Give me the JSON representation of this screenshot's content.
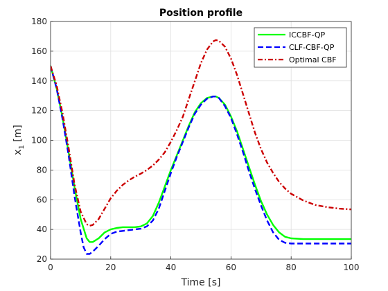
{
  "chart_data": {
    "type": "line",
    "title": "Position profile",
    "xlabel": "Time [s]",
    "ylabel": "x",
    "ylabel_subscript": "1",
    "ylabel_unit": " [m]",
    "xlim": [
      0,
      100
    ],
    "ylim": [
      20,
      180
    ],
    "xticks": [
      0,
      20,
      40,
      60,
      80,
      100
    ],
    "yticks": [
      20,
      40,
      60,
      80,
      100,
      120,
      140,
      160,
      180
    ],
    "grid": true,
    "legend_position": "top-right",
    "series": [
      {
        "name": "ICCBF-QP",
        "color": "#00ff00",
        "style": "solid",
        "x": [
          0,
          2,
          4,
          6,
          8,
          10,
          12,
          13,
          14,
          16,
          18,
          20,
          22,
          24,
          26,
          28,
          30,
          32,
          34,
          36,
          38,
          40,
          42,
          44,
          46,
          48,
          50,
          52,
          54,
          55,
          56,
          58,
          60,
          62,
          64,
          66,
          68,
          70,
          72,
          74,
          76,
          78,
          80,
          84,
          90,
          95,
          100
        ],
        "y": [
          150,
          135,
          115,
          92,
          68,
          47,
          34,
          31.5,
          31.5,
          34,
          38,
          40,
          41,
          41.5,
          41.5,
          41.5,
          42,
          44,
          49,
          58,
          69,
          80,
          90,
          100,
          110,
          119,
          125,
          128.5,
          129.5,
          129.5,
          128.5,
          124,
          116,
          106,
          94,
          82,
          70,
          59,
          50,
          43,
          38,
          35,
          34,
          33.5,
          33.5,
          33.5,
          33.5
        ]
      },
      {
        "name": "CLF-CBF-QP",
        "color": "#0000ff",
        "style": "dashed",
        "x": [
          0,
          2,
          4,
          6,
          8,
          10,
          11,
          12,
          13,
          14,
          16,
          18,
          20,
          22,
          24,
          26,
          28,
          30,
          32,
          34,
          36,
          38,
          40,
          42,
          44,
          46,
          48,
          50,
          52,
          54,
          55,
          56,
          58,
          60,
          62,
          64,
          66,
          68,
          70,
          72,
          74,
          76,
          78,
          80,
          84,
          90,
          95,
          100
        ],
        "y": [
          150,
          135,
          114,
          90,
          62,
          38,
          28,
          23.5,
          23.5,
          25,
          29,
          33.5,
          37,
          38.5,
          39,
          39.5,
          40,
          40.5,
          42,
          46,
          54,
          66,
          78,
          89,
          99,
          109,
          118,
          124,
          128,
          129.5,
          129.5,
          128.5,
          123,
          115,
          104,
          92,
          79,
          67,
          56,
          46,
          38,
          33,
          31,
          30.5,
          30.5,
          30.5,
          30.5,
          30.5
        ]
      },
      {
        "name": "Optimal CBF",
        "color": "#cc0000",
        "style": "dashdot",
        "x": [
          0,
          2,
          4,
          6,
          8,
          10,
          12,
          13,
          14,
          16,
          18,
          20,
          22,
          24,
          26,
          28,
          30,
          32,
          34,
          36,
          38,
          40,
          42,
          44,
          46,
          48,
          50,
          52,
          54,
          55,
          56,
          58,
          60,
          62,
          64,
          66,
          68,
          70,
          72,
          74,
          76,
          78,
          80,
          84,
          88,
          92,
          96,
          100
        ],
        "y": [
          150,
          137,
          118,
          95,
          70,
          52,
          43.5,
          42.5,
          43,
          47,
          54,
          61,
          66,
          70,
          73,
          75.5,
          77.5,
          80,
          83,
          87,
          92,
          99,
          107,
          116,
          128,
          140,
          152,
          161,
          166.5,
          167.5,
          167,
          163,
          155,
          144,
          131,
          118,
          105,
          94,
          85,
          78,
          72,
          67.5,
          64,
          59.5,
          56.5,
          55,
          54,
          53.5
        ]
      }
    ]
  }
}
